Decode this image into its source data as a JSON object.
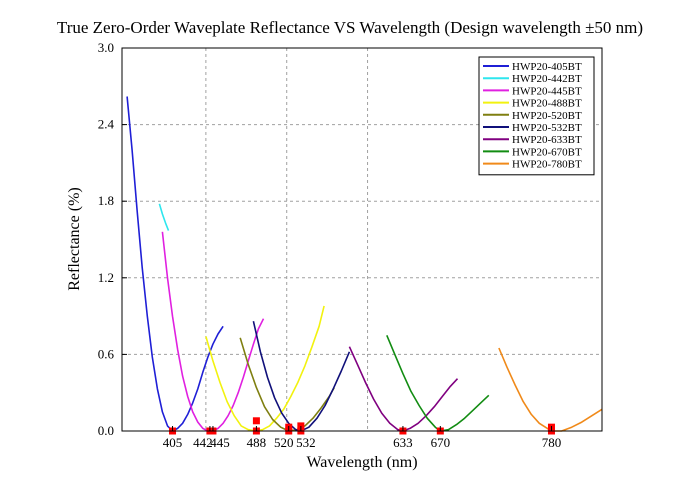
{
  "chart_data": {
    "type": "line",
    "title": "True Zero-Order Waveplate Reflectance VS Wavelength (Design wavelength ±50 nm)",
    "xlabel": "Wavelength (nm)",
    "ylabel": "Reflectance (%)",
    "xlim": [
      355,
      830
    ],
    "ylim": [
      0,
      3.0
    ],
    "yticks": [
      "0.0",
      "0.6",
      "1.2",
      "1.8",
      "2.4",
      "3.0"
    ],
    "xticks": [
      405,
      442,
      445,
      488,
      520,
      532,
      633,
      670,
      780
    ],
    "grid": true,
    "legend_position": "top-right",
    "series": [
      {
        "name": "HWP20-405BT",
        "color": "#1f1fd6",
        "design": 405,
        "x": [
          360,
          365,
          370,
          375,
          380,
          385,
          390,
          395,
          400,
          405,
          410,
          415,
          420,
          425,
          430,
          435,
          440,
          445,
          450,
          455
        ],
        "y": [
          2.62,
          2.2,
          1.72,
          1.28,
          0.9,
          0.58,
          0.33,
          0.15,
          0.04,
          0.0,
          0.02,
          0.06,
          0.13,
          0.22,
          0.33,
          0.46,
          0.58,
          0.68,
          0.76,
          0.82
        ]
      },
      {
        "name": "HWP20-442BT",
        "color": "#2ee6ee",
        "design": 442,
        "x": [
          392,
          395,
          398,
          401
        ],
        "y": [
          1.78,
          1.7,
          1.63,
          1.57
        ]
      },
      {
        "name": "HWP20-445BT",
        "color": "#e020e0",
        "design": 445,
        "x": [
          395,
          400,
          405,
          410,
          415,
          420,
          425,
          430,
          435,
          440,
          445,
          450,
          455,
          460,
          465,
          470,
          475,
          480,
          485,
          490,
          495
        ],
        "y": [
          1.56,
          1.2,
          0.9,
          0.64,
          0.43,
          0.27,
          0.15,
          0.07,
          0.02,
          0.0,
          0.0,
          0.02,
          0.06,
          0.12,
          0.2,
          0.3,
          0.42,
          0.55,
          0.68,
          0.8,
          0.88
        ]
      },
      {
        "name": "HWP20-488BT",
        "color": "#f2f20f",
        "design": 488,
        "x": [
          438,
          445,
          452,
          459,
          466,
          473,
          480,
          487,
          494,
          501,
          508,
          515,
          522,
          529,
          536,
          543,
          550,
          555
        ],
        "y": [
          0.74,
          0.55,
          0.38,
          0.23,
          0.12,
          0.04,
          0.01,
          0.0,
          0.01,
          0.04,
          0.1,
          0.17,
          0.27,
          0.38,
          0.51,
          0.66,
          0.82,
          0.98
        ]
      },
      {
        "name": "HWP20-520BT",
        "color": "#7f7f10",
        "design": 520,
        "x": [
          472,
          480,
          488,
          496,
          504,
          512,
          520,
          528,
          536,
          544,
          552,
          560,
          565
        ],
        "y": [
          0.73,
          0.52,
          0.34,
          0.19,
          0.09,
          0.03,
          0.0,
          0.01,
          0.04,
          0.1,
          0.18,
          0.27,
          0.34
        ]
      },
      {
        "name": "HWP20-532BT",
        "color": "#10107a",
        "design": 532,
        "x": [
          485,
          492,
          499,
          506,
          513,
          520,
          527,
          532,
          540,
          548,
          556,
          564,
          572,
          580
        ],
        "y": [
          0.86,
          0.62,
          0.42,
          0.26,
          0.14,
          0.06,
          0.01,
          0.0,
          0.03,
          0.1,
          0.2,
          0.33,
          0.47,
          0.62
        ]
      },
      {
        "name": "HWP20-633BT",
        "color": "#800080",
        "design": 633,
        "x": [
          580,
          588,
          596,
          604,
          612,
          620,
          628,
          633,
          640,
          648,
          656,
          664,
          672,
          680,
          687
        ],
        "y": [
          0.66,
          0.52,
          0.38,
          0.25,
          0.14,
          0.06,
          0.01,
          0.0,
          0.02,
          0.06,
          0.12,
          0.19,
          0.27,
          0.35,
          0.41
        ]
      },
      {
        "name": "HWP20-670BT",
        "color": "#128c12",
        "design": 670,
        "x": [
          617,
          625,
          633,
          641,
          649,
          657,
          665,
          670,
          678,
          686,
          694,
          702,
          710,
          718
        ],
        "y": [
          0.75,
          0.6,
          0.45,
          0.31,
          0.2,
          0.1,
          0.03,
          0.0,
          0.01,
          0.05,
          0.1,
          0.16,
          0.22,
          0.28
        ]
      },
      {
        "name": "HWP20-780BT",
        "color": "#f08a1a",
        "design": 780,
        "x": [
          728,
          736,
          744,
          752,
          760,
          768,
          776,
          780,
          790,
          800,
          810,
          820,
          830
        ],
        "y": [
          0.65,
          0.5,
          0.36,
          0.23,
          0.13,
          0.06,
          0.02,
          0.0,
          0.0,
          0.03,
          0.07,
          0.12,
          0.17
        ]
      }
    ],
    "markers": {
      "color": "#ff0000",
      "points": [
        [
          405,
          0.0
        ],
        [
          442,
          0.0
        ],
        [
          445,
          0.0
        ],
        [
          488,
          0.0
        ],
        [
          488,
          0.08
        ],
        [
          520,
          0.0
        ],
        [
          520,
          0.03
        ],
        [
          532,
          0.0
        ],
        [
          532,
          0.04
        ],
        [
          633,
          0.0
        ],
        [
          670,
          0.0
        ],
        [
          780,
          0.0
        ],
        [
          780,
          0.03
        ]
      ]
    }
  }
}
